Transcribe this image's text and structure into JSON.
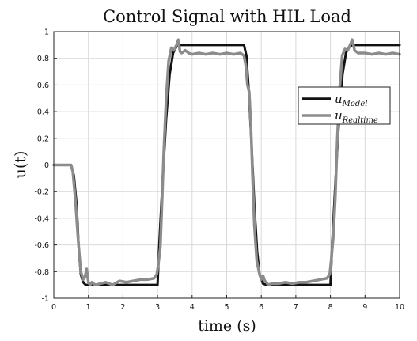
{
  "chart_data": {
    "type": "line",
    "title": "Control Signal with HIL Load",
    "xlabel": "time (s)",
    "ylabel": "u(t)",
    "xlim": [
      0,
      10
    ],
    "ylim": [
      -1,
      1
    ],
    "grid": true,
    "legend_position": "right",
    "x_ticks": [
      "0",
      "1",
      "2",
      "3",
      "4",
      "5",
      "6",
      "7",
      "8",
      "9",
      "10"
    ],
    "y_ticks": [
      "1",
      "0.8",
      "0.6",
      "0.4",
      "0.2",
      "0",
      "-0.2",
      "-0.4",
      "-0.6",
      "-0.8",
      "-1"
    ],
    "x_tick_values": [
      0,
      1,
      2,
      3,
      4,
      5,
      6,
      7,
      8,
      9,
      10
    ],
    "y_tick_values": [
      1,
      0.8,
      0.6,
      0.4,
      0.2,
      0,
      -0.2,
      -0.4,
      -0.6,
      -0.8,
      -1
    ],
    "series": [
      {
        "name": "u_Model",
        "legend_base": "u",
        "legend_sub": "Model",
        "color": "#111111",
        "x": [
          0,
          0.5,
          0.58,
          0.66,
          0.72,
          0.78,
          0.85,
          0.92,
          1.0,
          3.0,
          3.05,
          3.15,
          3.25,
          3.35,
          3.45,
          3.55,
          3.65,
          3.75,
          5.5,
          5.57,
          5.64,
          5.72,
          5.8,
          5.88,
          5.95,
          6.05,
          6.15,
          6.3,
          8.0,
          8.05,
          8.15,
          8.25,
          8.35,
          8.45,
          8.55,
          8.65,
          8.75,
          10
        ],
        "y": [
          0,
          0,
          -0.08,
          -0.3,
          -0.62,
          -0.82,
          -0.88,
          -0.9,
          -0.9,
          -0.9,
          -0.6,
          -0.1,
          0.35,
          0.68,
          0.84,
          0.89,
          0.9,
          0.9,
          0.9,
          0.82,
          0.55,
          0.15,
          -0.3,
          -0.65,
          -0.82,
          -0.89,
          -0.9,
          -0.9,
          -0.9,
          -0.6,
          -0.1,
          0.35,
          0.68,
          0.84,
          0.89,
          0.9,
          0.9,
          0.9
        ]
      },
      {
        "name": "u_Realtime",
        "legend_base": "u",
        "legend_sub": "Realtime",
        "color": "#8c8c8c",
        "x": [
          0,
          0.5,
          0.55,
          0.62,
          0.7,
          0.78,
          0.85,
          0.9,
          0.95,
          1.0,
          1.05,
          1.1,
          1.2,
          1.35,
          1.5,
          1.7,
          1.9,
          2.1,
          2.3,
          2.5,
          2.7,
          2.9,
          2.98,
          3.02,
          3.08,
          3.12,
          3.18,
          3.25,
          3.32,
          3.4,
          3.47,
          3.55,
          3.6,
          3.65,
          3.7,
          3.8,
          3.9,
          4.0,
          4.2,
          4.4,
          4.6,
          4.8,
          5.0,
          5.2,
          5.4,
          5.5,
          5.55,
          5.6,
          5.65,
          5.7,
          5.75,
          5.8,
          5.87,
          5.95,
          6.0,
          6.05,
          6.1,
          6.15,
          6.2,
          6.3,
          6.5,
          6.7,
          6.9,
          7.1,
          7.3,
          7.5,
          7.7,
          7.9,
          7.98,
          8.02,
          8.08,
          8.14,
          8.2,
          8.27,
          8.34,
          8.42,
          8.5,
          8.57,
          8.63,
          8.7,
          8.8,
          9.0,
          9.2,
          9.4,
          9.6,
          9.8,
          10.0
        ],
        "y": [
          0,
          0,
          -0.05,
          -0.25,
          -0.55,
          -0.8,
          -0.86,
          -0.84,
          -0.78,
          -0.88,
          -0.9,
          -0.88,
          -0.9,
          -0.89,
          -0.88,
          -0.9,
          -0.87,
          -0.88,
          -0.87,
          -0.86,
          -0.86,
          -0.85,
          -0.82,
          -0.75,
          -0.62,
          -0.35,
          0.1,
          0.5,
          0.78,
          0.88,
          0.86,
          0.9,
          0.94,
          0.85,
          0.84,
          0.86,
          0.84,
          0.83,
          0.84,
          0.83,
          0.84,
          0.83,
          0.84,
          0.83,
          0.84,
          0.82,
          0.75,
          0.6,
          0.55,
          0.3,
          -0.1,
          -0.45,
          -0.72,
          -0.82,
          -0.86,
          -0.83,
          -0.87,
          -0.88,
          -0.9,
          -0.89,
          -0.89,
          -0.88,
          -0.89,
          -0.88,
          -0.88,
          -0.87,
          -0.86,
          -0.85,
          -0.82,
          -0.72,
          -0.55,
          -0.25,
          0.2,
          0.58,
          0.82,
          0.87,
          0.86,
          0.9,
          0.94,
          0.86,
          0.84,
          0.84,
          0.83,
          0.84,
          0.83,
          0.84,
          0.83
        ]
      }
    ]
  }
}
